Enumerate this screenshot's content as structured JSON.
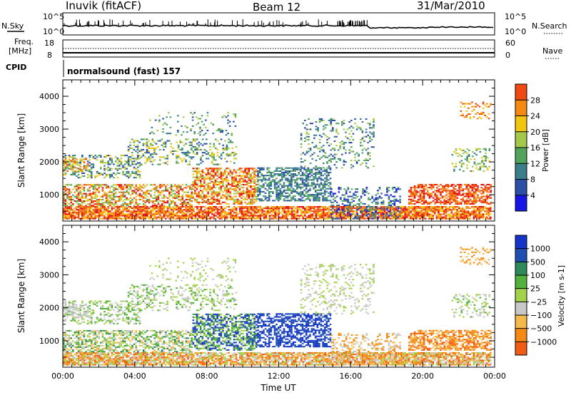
{
  "header": {
    "station": "Inuvik (fitACF)",
    "beam": "Beam 12",
    "date": "31/Mar/2010"
  },
  "top_panels": {
    "nsky_label": "N.Sky",
    "nsearch_label": "N.Search",
    "noise_ticks_left": [
      "10^5",
      "10^0"
    ],
    "noise_ticks_right": [
      "10^5",
      "10^0"
    ],
    "freq_label_1": "Freq.",
    "freq_label_2": "[MHz]",
    "freq_ticks": [
      "18",
      "8"
    ],
    "nave_label": "Nave",
    "nave_ticks": [
      "60",
      "0"
    ],
    "cpid_label": "CPID",
    "cpid_text": "normalsound (fast) 157"
  },
  "colors": {
    "power_scale": [
      "#1515e6",
      "#2c4fa8",
      "#3b7f8c",
      "#52a35c",
      "#a4c84a",
      "#f2c511",
      "#f58a12",
      "#ef4a12",
      "#e01010"
    ],
    "velocity_scale": [
      "#e01010",
      "#f25c12",
      "#f58a12",
      "#f5b84a",
      "#c8c8c8",
      "#a4d24a",
      "#52b03c",
      "#2e8a5a",
      "#1f4fb3",
      "#1535c8"
    ]
  },
  "chart_data": [
    {
      "type": "heatmap",
      "name": "power",
      "xlabel": "",
      "ylabel": "Slant Range [km]",
      "x_ticks": [
        "00:00",
        "04:00",
        "08:00",
        "12:00",
        "16:00",
        "20:00",
        "00:00"
      ],
      "y_ticks": [
        1000,
        2000,
        3000,
        4000
      ],
      "ylim": [
        200,
        4500
      ],
      "colorbar": {
        "label": "Power [dB]",
        "ticks": [
          4,
          8,
          12,
          16,
          20,
          24,
          28
        ],
        "range": [
          0,
          32
        ]
      }
    },
    {
      "type": "heatmap",
      "name": "velocity",
      "xlabel": "Time UT",
      "ylabel": "Slant Range [km]",
      "x_ticks": [
        "00:00",
        "04:00",
        "08:00",
        "12:00",
        "16:00",
        "20:00",
        "00:00"
      ],
      "y_ticks": [
        1000,
        2000,
        3000,
        4000
      ],
      "ylim": [
        200,
        4500
      ],
      "colorbar": {
        "label": "Velocity [m s-1]",
        "ticks": [
          -1000,
          -500,
          -100,
          -25,
          25,
          100,
          500,
          1000
        ],
        "tick_labels": [
          "−1000",
          "−500",
          "−100",
          "−25",
          "25",
          "100",
          "500",
          "1000"
        ]
      }
    }
  ]
}
